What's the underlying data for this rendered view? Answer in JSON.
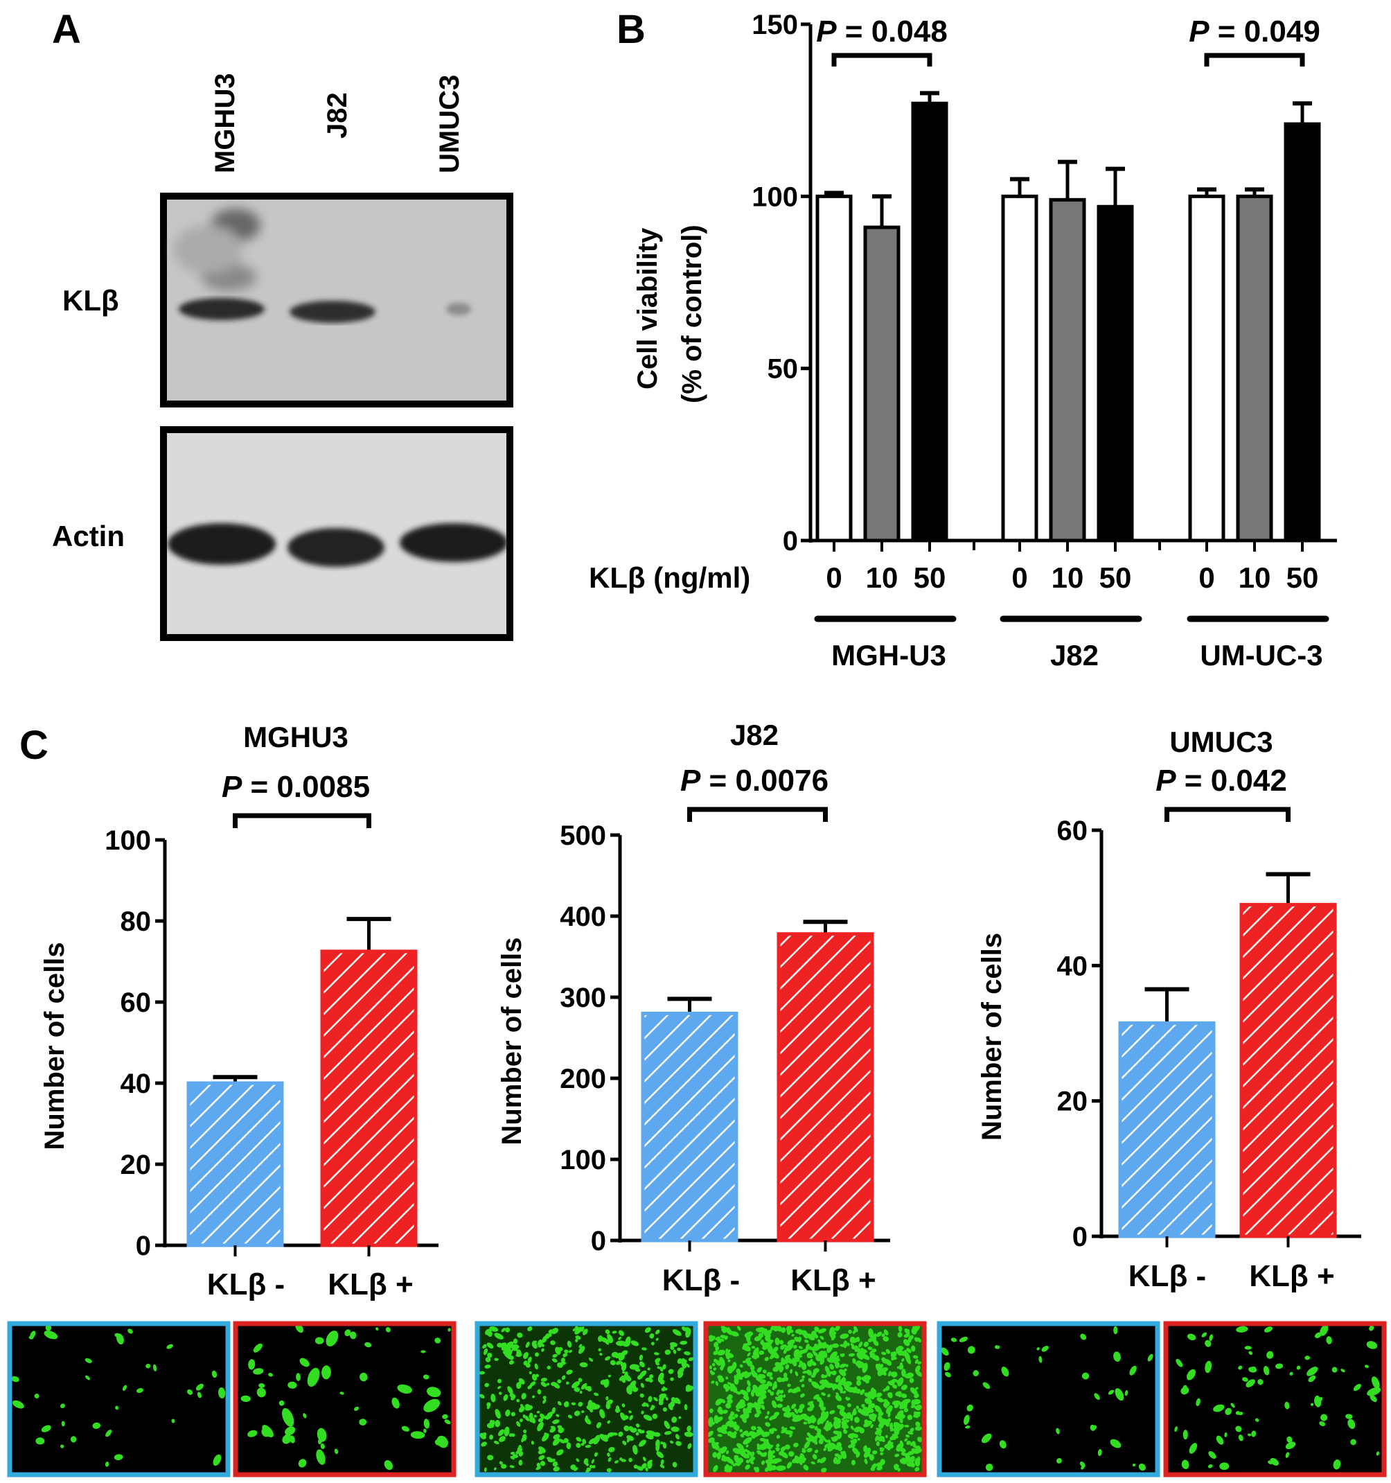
{
  "panels": {
    "a": "A",
    "b": "B",
    "c": "C"
  },
  "blot": {
    "lanes": [
      "MGHU3",
      "J82",
      "UMUC3"
    ],
    "row_labels": {
      "top": "KLβ",
      "bottom": "Actin"
    }
  },
  "chart_data": [
    {
      "type": "bar",
      "panel": "B",
      "ylabel": "Cell viability",
      "ylabel2": "(% of control)",
      "xlabel": "KLβ (ng/ml)",
      "ylim": [
        0,
        150
      ],
      "yticks": [
        0,
        50,
        100,
        150
      ],
      "groups": [
        "MGH-U3",
        "J82",
        "UM-UC-3"
      ],
      "categories": [
        "0",
        "10",
        "50"
      ],
      "series": [
        {
          "name": "0",
          "values": [
            100,
            100,
            100
          ],
          "errors": [
            1,
            5,
            2
          ],
          "color": "#ffffff"
        },
        {
          "name": "10",
          "values": [
            91,
            99,
            100
          ],
          "errors": [
            9,
            11,
            2
          ],
          "color": "#777777"
        },
        {
          "name": "50",
          "values": [
            127,
            97,
            121
          ],
          "errors": [
            3,
            11,
            6
          ],
          "color": "#000000"
        }
      ],
      "annotations": [
        {
          "text": "P = 0.048",
          "group": 0,
          "from": 0,
          "to": 2
        },
        {
          "text": "P = 0.049",
          "group": 2,
          "from": 0,
          "to": 2
        }
      ]
    },
    {
      "type": "bar",
      "panel": "C",
      "title": "MGHU3",
      "ylabel": "Number of cells",
      "categories": [
        "KLβ -",
        "KLβ +"
      ],
      "values": [
        40,
        72.5
      ],
      "errors": [
        1.5,
        8
      ],
      "ylim": [
        0,
        100
      ],
      "yticks": [
        0,
        20,
        40,
        60,
        80,
        100
      ],
      "pvalue": "P = 0.0085"
    },
    {
      "type": "bar",
      "panel": "C",
      "title": "J82",
      "ylabel": "Number of cells",
      "categories": [
        "KLβ -",
        "KLβ +"
      ],
      "values": [
        280,
        378
      ],
      "errors": [
        18,
        15
      ],
      "ylim": [
        0,
        500
      ],
      "yticks": [
        0,
        100,
        200,
        300,
        400,
        500
      ],
      "pvalue": "P = 0.0076"
    },
    {
      "type": "bar",
      "panel": "C",
      "title": "UMUC3",
      "ylabel": "Number of cells",
      "categories": [
        "KLβ -",
        "KLβ +"
      ],
      "values": [
        31.5,
        49
      ],
      "errors": [
        5,
        4.5
      ],
      "ylim": [
        0,
        60
      ],
      "yticks": [
        0,
        20,
        40,
        60
      ],
      "pvalue": "P = 0.042"
    }
  ],
  "colors": {
    "blue": "#5ea8f0",
    "red": "#ee2222",
    "frame_blue": "#33aadd",
    "frame_red": "#dd2222",
    "cell_green": "#33dd22"
  }
}
